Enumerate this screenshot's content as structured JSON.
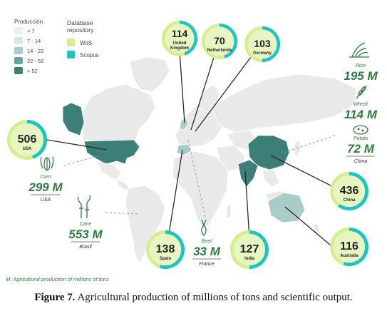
{
  "legend": {
    "title": "Producción",
    "bins": [
      {
        "label": "< 7",
        "color": "#eeeeee"
      },
      {
        "label": "7 - 14",
        "color": "#d5e6e4"
      },
      {
        "label": "14 - 22",
        "color": "#a9ccc8"
      },
      {
        "label": "22 - 52",
        "color": "#6aa39d"
      },
      {
        "label": "> 52",
        "color": "#3c7f77"
      }
    ]
  },
  "repository": {
    "title_line1": "Database",
    "title_line2": "repository",
    "items": [
      {
        "label": "WoS",
        "color": "#d4ef8e"
      },
      {
        "label": "Scopus",
        "color": "#1ec3c3"
      }
    ]
  },
  "countries": [
    {
      "key": "uk",
      "value": "114",
      "line1": "United",
      "line2": "Kingdom",
      "scopus_share": 0.45
    },
    {
      "key": "nl",
      "value": "70",
      "line1": "Netherlands",
      "line2": "",
      "scopus_share": 0.45
    },
    {
      "key": "de",
      "value": "103",
      "line1": "Germany",
      "line2": "",
      "scopus_share": 0.5
    },
    {
      "key": "usa",
      "value": "506",
      "line1": "USA",
      "line2": "",
      "scopus_share": 0.45
    },
    {
      "key": "cn",
      "value": "436",
      "line1": "China",
      "line2": "",
      "scopus_share": 0.6
    },
    {
      "key": "es",
      "value": "138",
      "line1": "Spain",
      "line2": "",
      "scopus_share": 0.55
    },
    {
      "key": "in",
      "value": "127",
      "line1": "India",
      "line2": "",
      "scopus_share": 0.5
    },
    {
      "key": "au",
      "value": "116",
      "line1": "Australia",
      "line2": "",
      "scopus_share": 0.55
    }
  ],
  "crops": [
    {
      "key": "corn",
      "name": "Corn",
      "value": "299 M",
      "country": "USA"
    },
    {
      "key": "cane",
      "name": "Cane",
      "value": "553 M",
      "country": "Brasil"
    },
    {
      "key": "beet",
      "name": "Beet",
      "value": "33 M",
      "country": "France"
    },
    {
      "key": "rice",
      "name": "Rice",
      "value": "195 M",
      "country": ""
    },
    {
      "key": "wheat",
      "name": "Wheat",
      "value": "114 M",
      "country": ""
    },
    {
      "key": "potato",
      "name": "Potato",
      "value": "72 M",
      "country": "China"
    }
  ],
  "footnote": "M: Agricultural production of millions of tons",
  "caption": {
    "label": "Figure 7.",
    "text": " Agricultural production of millions of tons and scientific output."
  },
  "colors": {
    "wos": "#d4ef8e",
    "scopus": "#1ec3c3",
    "map_default": "#e9e9e9",
    "map_dark": "#3c7f77",
    "map_light": "#a9ccc8",
    "crop_text": "#2f7d3e",
    "line": "#2b2b2b"
  }
}
